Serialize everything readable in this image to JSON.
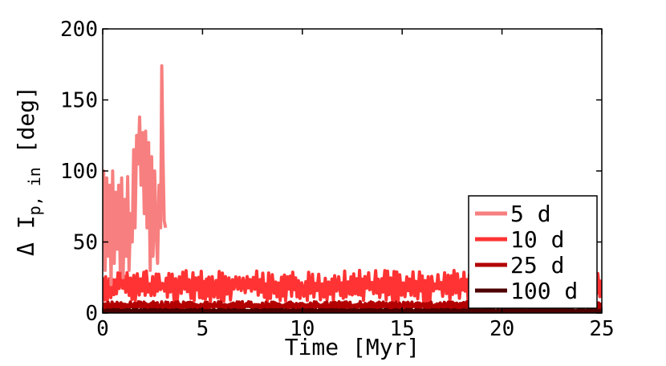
{
  "chart_data": {
    "type": "line",
    "xlabel": "Time [Myr]",
    "ylabel": {
      "prefix": "Δ I",
      "subscript": "p, in",
      "unit": " [deg]"
    },
    "xlim": [
      0,
      25
    ],
    "ylim": [
      0,
      200
    ],
    "x_ticks": [
      0,
      5,
      10,
      15,
      20,
      25
    ],
    "y_ticks": [
      0,
      50,
      100,
      150,
      200
    ],
    "grid": false,
    "legend_position": "right",
    "series": [
      {
        "name": "5 d",
        "color": "#f77f7f",
        "x": [
          0,
          0.05,
          0.12,
          0.2,
          0.28,
          0.35,
          0.42,
          0.5,
          0.58,
          0.65,
          0.72,
          0.8,
          0.88,
          0.95,
          1.02,
          1.1,
          1.18,
          1.25,
          1.32,
          1.4,
          1.48,
          1.55,
          1.62,
          1.7,
          1.78,
          1.85,
          1.92,
          2.0,
          2.08,
          2.15,
          2.22,
          2.3,
          2.38,
          2.45,
          2.52,
          2.6,
          2.68,
          2.75,
          2.82,
          2.9,
          2.96,
          3.02,
          3.08,
          3.15
        ],
        "y": [
          60,
          100,
          30,
          95,
          40,
          90,
          20,
          100,
          35,
          85,
          45,
          90,
          30,
          95,
          25,
          80,
          40,
          96,
          30,
          70,
          50,
          115,
          60,
          125,
          105,
          138,
          90,
          127,
          70,
          128,
          60,
          120,
          30,
          110,
          40,
          100,
          55,
          35,
          90,
          60,
          174,
          110,
          65,
          60
        ]
      },
      {
        "name": "10 d",
        "color": "#ff3333",
        "band": [
          8,
          30
        ],
        "period": 0.16
      },
      {
        "name": "25 d",
        "color": "#b30000",
        "band": [
          2,
          8
        ],
        "period": 0.1
      },
      {
        "name": "100 d",
        "color": "#4d0000",
        "band": [
          0.5,
          2.5
        ],
        "period": 0.08
      }
    ]
  }
}
